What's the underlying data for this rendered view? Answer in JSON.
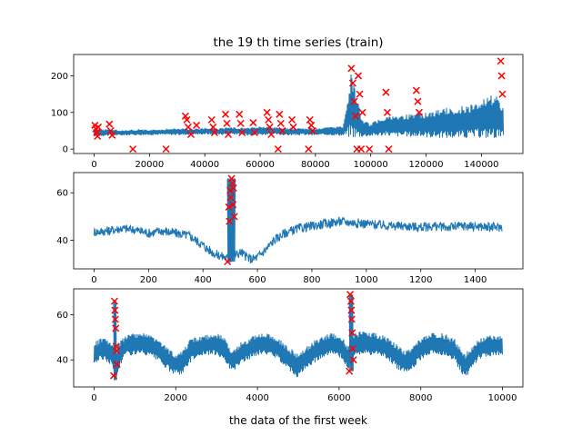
{
  "figure": {
    "title": "the 19 th time series (train)",
    "xlabel_bottom": "the data of the first week"
  },
  "colors": {
    "line": "#1f77b4",
    "anomaly": "#ff0000"
  },
  "chart_data": [
    {
      "type": "line",
      "title": "the 19 th time series (train)",
      "xlim": [
        -7400,
        155000
      ],
      "ylim": [
        -12,
        258
      ],
      "xticks": [
        0,
        20000,
        40000,
        60000,
        80000,
        100000,
        120000,
        140000
      ],
      "yticks": [
        0,
        100,
        200
      ],
      "series": [
        {
          "x": [
            0,
            5000,
            10000,
            15000,
            20000,
            25000,
            30000,
            35000,
            40000,
            45000,
            50000,
            55000,
            60000,
            65000,
            70000,
            75000,
            80000,
            85000,
            90000,
            93000,
            95000,
            97000,
            100000,
            105000,
            110000,
            115000,
            120000,
            125000,
            130000,
            135000,
            140000,
            145000,
            148000
          ],
          "low": [
            35,
            36,
            37,
            38,
            38,
            39,
            38,
            39,
            40,
            39,
            40,
            38,
            38,
            39,
            37,
            38,
            37,
            38,
            36,
            30,
            32,
            33,
            35,
            36,
            34,
            33,
            32,
            30,
            30,
            30,
            30,
            30,
            30
          ],
          "high": [
            55,
            55,
            52,
            54,
            53,
            55,
            57,
            56,
            58,
            57,
            60,
            58,
            62,
            60,
            58,
            58,
            57,
            60,
            64,
            210,
            140,
            80,
            70,
            90,
            90,
            100,
            100,
            110,
            115,
            120,
            140,
            150,
            110
          ]
        }
      ],
      "anomalies": {
        "x": [
          300,
          600,
          900,
          1200,
          1500,
          5500,
          6000,
          6500,
          14000,
          26000,
          33000,
          33500,
          34000,
          35000,
          37000,
          42500,
          43000,
          43500,
          47500,
          48000,
          48500,
          52500,
          53000,
          53500,
          57500,
          58000,
          62500,
          63000,
          63500,
          64000,
          66500,
          67000,
          67500,
          68000,
          71500,
          72000,
          77500,
          78000,
          78500,
          79000,
          93000,
          93500,
          94000,
          94500,
          95000,
          95500,
          96000,
          96500,
          97000,
          99500,
          105500,
          106000,
          106500,
          116500,
          117000,
          117500,
          147000,
          147300,
          147600
        ],
        "y": [
          65,
          55,
          45,
          35,
          60,
          68,
          50,
          38,
          0,
          0,
          90,
          80,
          60,
          40,
          65,
          80,
          60,
          45,
          95,
          70,
          40,
          95,
          70,
          45,
          72,
          45,
          100,
          80,
          60,
          40,
          0,
          95,
          70,
          50,
          80,
          60,
          0,
          80,
          65,
          50,
          220,
          180,
          130,
          90,
          0,
          200,
          150,
          0,
          100,
          0,
          155,
          100,
          0,
          160,
          130,
          100,
          240,
          200,
          150
        ]
      }
    },
    {
      "type": "line",
      "xlim": [
        -75,
        1575
      ],
      "ylim": [
        28,
        68.5
      ],
      "xticks": [
        0,
        200,
        400,
        600,
        800,
        1000,
        1200,
        1400
      ],
      "yticks": [
        40,
        60
      ],
      "series": [
        {
          "x": [
            0,
            50,
            100,
            150,
            200,
            250,
            300,
            350,
            400,
            420,
            450,
            480,
            500,
            510,
            520,
            540,
            560,
            580,
            600,
            630,
            660,
            700,
            750,
            800,
            850,
            900,
            950,
            1000,
            1050,
            1100,
            1150,
            1200,
            1250,
            1300,
            1350,
            1400,
            1450,
            1499
          ],
          "y": [
            43.5,
            44,
            45,
            44.5,
            43,
            44,
            43,
            42,
            38,
            36,
            34,
            33,
            32,
            36,
            34,
            35,
            33,
            32,
            33,
            36,
            40,
            43,
            45,
            46,
            47,
            48,
            47.5,
            47,
            46.5,
            46,
            46,
            45.5,
            46,
            45.5,
            46,
            46,
            45.5,
            45.5
          ]
        }
      ],
      "spike": {
        "x_from": 490,
        "x_to": 520,
        "y_low": 31,
        "y_high": 66
      },
      "anomalies": {
        "x": [
          490,
          495,
          497,
          500,
          502,
          505,
          508,
          510,
          512,
          515
        ],
        "y": [
          31,
          54,
          48,
          61,
          58,
          66,
          64,
          55,
          62,
          50
        ]
      }
    },
    {
      "type": "line",
      "xlabel": "the data of the first week",
      "xlim": [
        -500,
        10500
      ],
      "ylim": [
        28,
        71.5
      ],
      "xticks": [
        0,
        2000,
        4000,
        6000,
        8000,
        10000
      ],
      "yticks": [
        40,
        60
      ],
      "series": [
        {
          "x": [
            0,
            200,
            400,
            500,
            550,
            600,
            700,
            800,
            1000,
            1200,
            1500,
            1700,
            1900,
            2000,
            2200,
            2400,
            2700,
            3000,
            3200,
            3300,
            3400,
            3600,
            3800,
            4000,
            4300,
            4500,
            4700,
            4900,
            5000,
            5200,
            5500,
            5800,
            6100,
            6200,
            6300,
            6400,
            6600,
            6900,
            7200,
            7400,
            7600,
            7800,
            8000,
            8200,
            8500,
            8800,
            9000,
            9100,
            9200,
            9400,
            9600,
            9800,
            10000
          ],
          "low": [
            38,
            40,
            38,
            33,
            31,
            35,
            40,
            42,
            42,
            42,
            40,
            37,
            34,
            33,
            34,
            40,
            42,
            42,
            40,
            36,
            35,
            38,
            40,
            42,
            42,
            40,
            37,
            33,
            32,
            36,
            40,
            42,
            40,
            35,
            37,
            42,
            42,
            42,
            40,
            36,
            34,
            36,
            40,
            42,
            42,
            40,
            34,
            32,
            34,
            40,
            41,
            42,
            42
          ],
          "high": [
            48,
            50,
            49,
            46,
            45,
            48,
            50,
            51,
            52,
            52,
            50,
            47,
            44,
            43,
            46,
            50,
            51,
            52,
            50,
            46,
            45,
            48,
            50,
            52,
            52,
            50,
            47,
            44,
            43,
            46,
            50,
            52,
            50,
            47,
            48,
            52,
            53,
            52,
            50,
            47,
            44,
            46,
            50,
            52,
            52,
            50,
            45,
            43,
            45,
            49,
            51,
            51,
            51
          ]
        }
      ],
      "spikes": [
        {
          "x_from": 480,
          "x_to": 560,
          "y_low": 31,
          "y_high": 66
        },
        {
          "x_from": 6250,
          "x_to": 6350,
          "y_low": 35,
          "y_high": 69
        }
      ],
      "anomalies": {
        "x": [
          480,
          500,
          510,
          520,
          530,
          540,
          550,
          560,
          6250,
          6270,
          6290,
          6300,
          6310,
          6320,
          6330,
          6350
        ],
        "y": [
          33,
          66,
          62,
          58,
          54,
          46,
          44,
          38,
          35,
          69,
          66,
          62,
          58,
          52,
          45,
          40
        ]
      }
    }
  ]
}
